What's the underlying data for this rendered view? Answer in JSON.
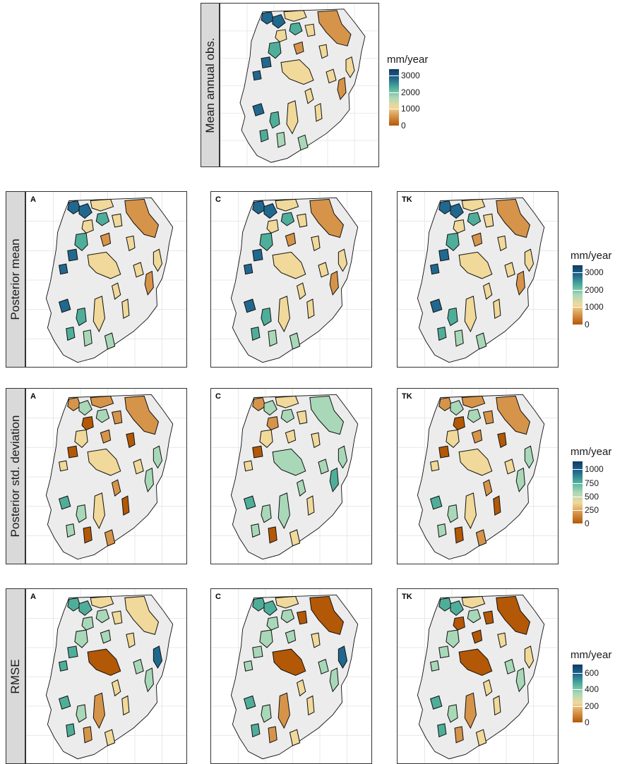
{
  "rows": [
    {
      "label": "Mean annual obs.",
      "legend": {
        "title": "mm/year",
        "ticks": [
          "3000",
          "2000",
          "1000",
          "0"
        ],
        "max": 3400,
        "values": [
          3000,
          2000,
          1000,
          0
        ]
      },
      "panels": [
        {
          "tag": "",
          "scheme": "obs"
        }
      ]
    },
    {
      "label": "Posterior mean",
      "legend": {
        "title": "mm/year",
        "ticks": [
          "3000",
          "2000",
          "1000",
          "0"
        ],
        "max": 3400,
        "values": [
          3000,
          2000,
          1000,
          0
        ]
      },
      "panels": [
        {
          "tag": "A",
          "scheme": "mean"
        },
        {
          "tag": "C",
          "scheme": "mean"
        },
        {
          "tag": "TK",
          "scheme": "mean"
        }
      ]
    },
    {
      "label": "Posterior std. deviation",
      "legend": {
        "title": "mm/year",
        "ticks": [
          "1000",
          "750",
          "500",
          "250",
          "0"
        ],
        "max": 1150,
        "values": [
          1000,
          750,
          500,
          250,
          0
        ]
      },
      "panels": [
        {
          "tag": "A",
          "scheme": "sdA"
        },
        {
          "tag": "C",
          "scheme": "sdC"
        },
        {
          "tag": "TK",
          "scheme": "sdA"
        }
      ]
    },
    {
      "label": "RMSE",
      "legend": {
        "title": "mm/year",
        "ticks": [
          "600",
          "400",
          "200",
          "0"
        ],
        "max": 700,
        "values": [
          600,
          400,
          200,
          0
        ]
      },
      "panels": [
        {
          "tag": "A",
          "scheme": "rmseA"
        },
        {
          "tag": "C",
          "scheme": "rmseC"
        },
        {
          "tag": "TK",
          "scheme": "rmseTK"
        }
      ]
    }
  ],
  "palette": [
    "#b35806",
    "#d6944a",
    "#f0d99a",
    "#a9d8b8",
    "#4fae9a",
    "#21688f",
    "#0f3b63"
  ],
  "map_colors": {
    "land": "#ececec",
    "border": "#111111",
    "grid": "#e3e3e3"
  }
}
